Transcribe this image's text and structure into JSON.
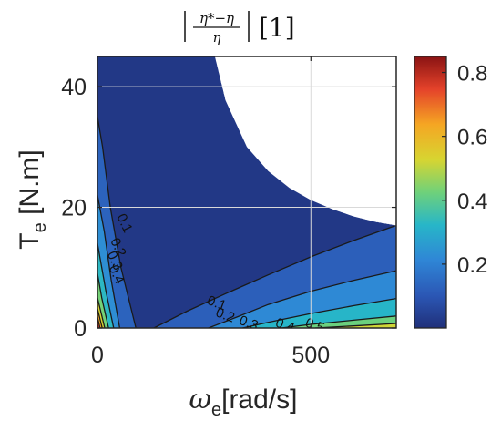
{
  "chart_data": {
    "type": "heatmap",
    "subtype": "filled-contour",
    "title": {
      "numerator": "η*−η",
      "denominator": "η",
      "suffix": "[1]"
    },
    "xlabel": {
      "symbol": "ω",
      "subscript": "e",
      "unit": "[rad/s]"
    },
    "ylabel": {
      "symbol": "T",
      "subscript": "e",
      "unit": "[N.m]"
    },
    "xlim": [
      0,
      700
    ],
    "ylim": [
      0,
      45
    ],
    "xticks": [
      0,
      500
    ],
    "yticks": [
      0,
      20,
      40
    ],
    "grid": true,
    "colormap": "parula-like",
    "colorbar": {
      "position": "right",
      "range": [
        0,
        0.85
      ],
      "ticks": [
        0.2,
        0.4,
        0.6,
        0.8
      ],
      "tick_labels": [
        "0.2",
        "0.4",
        "0.6",
        "0.8"
      ]
    },
    "contour_levels": [
      0.1,
      0.2,
      0.3,
      0.4,
      0.5
    ],
    "contour_labels": [
      {
        "text": "0.1",
        "x": 45,
        "y": 18.5
      },
      {
        "text": "0.2",
        "x": 30,
        "y": 14.5
      },
      {
        "text": "0.3",
        "x": 22,
        "y": 12.3
      },
      {
        "text": "0.4",
        "x": 26,
        "y": 10
      },
      {
        "text": "0.1",
        "x": 255,
        "y": 4
      },
      {
        "text": "0.2",
        "x": 275,
        "y": 2
      },
      {
        "text": "0.3",
        "x": 330,
        "y": 0.7
      },
      {
        "text": "0.4",
        "x": 415,
        "y": 0.3
      },
      {
        "text": "0.5",
        "x": 485,
        "y": 0.3
      }
    ],
    "valid_region_boundary": [
      [
        0,
        45
      ],
      [
        275,
        45
      ],
      [
        300,
        37.7
      ],
      [
        350,
        30
      ],
      [
        400,
        26
      ],
      [
        450,
        23.2
      ],
      [
        500,
        21.2
      ],
      [
        550,
        19.7
      ],
      [
        600,
        18.5
      ],
      [
        650,
        17.6
      ],
      [
        700,
        17
      ]
    ],
    "level_boundaries": [
      {
        "level": 0.1,
        "curve": [
          [
            132,
            0
          ],
          [
            210,
            2.8
          ],
          [
            300,
            5.7
          ],
          [
            400,
            8.8
          ],
          [
            500,
            11.8
          ],
          [
            600,
            14.5
          ],
          [
            700,
            17
          ]
        ]
      },
      {
        "level": 0.2,
        "curve": [
          [
            260,
            0
          ],
          [
            330,
            1.9
          ],
          [
            400,
            3.9
          ],
          [
            500,
            6.1
          ],
          [
            600,
            7.9
          ],
          [
            700,
            9.5
          ]
        ]
      },
      {
        "level": 0.3,
        "curve": [
          [
            340,
            0
          ],
          [
            400,
            0.95
          ],
          [
            500,
            2.4
          ],
          [
            600,
            3.7
          ],
          [
            700,
            4.9
          ]
        ]
      },
      {
        "level": 0.4,
        "curve": [
          [
            430,
            0
          ],
          [
            500,
            0.6
          ],
          [
            600,
            1.3
          ],
          [
            700,
            2.0
          ]
        ]
      },
      {
        "level": 0.5,
        "curve": [
          [
            510,
            0
          ],
          [
            600,
            0.35
          ],
          [
            700,
            0.75
          ]
        ]
      }
    ],
    "low_speed_boundaries": [
      {
        "level": 0.1,
        "curve": [
          [
            90,
            0
          ],
          [
            55,
            10
          ],
          [
            30,
            20
          ],
          [
            12,
            30
          ],
          [
            0,
            35
          ]
        ]
      },
      {
        "level": 0.2,
        "curve": [
          [
            52,
            0
          ],
          [
            32,
            8
          ],
          [
            16,
            16
          ],
          [
            0,
            22
          ]
        ]
      },
      {
        "level": 0.3,
        "curve": [
          [
            38,
            0
          ],
          [
            20,
            6
          ],
          [
            0,
            14
          ]
        ]
      },
      {
        "level": 0.4,
        "curve": [
          [
            26,
            0
          ],
          [
            10,
            5
          ],
          [
            0,
            9
          ]
        ]
      },
      {
        "level": 0.5,
        "curve": [
          [
            17,
            0
          ],
          [
            0,
            5
          ]
        ]
      },
      {
        "level": 0.6,
        "curve": [
          [
            11,
            0
          ],
          [
            0,
            3.2
          ]
        ]
      },
      {
        "level": 0.7,
        "curve": [
          [
            6,
            0
          ],
          [
            0,
            1.8
          ]
        ]
      }
    ],
    "corner_level": 0.8
  }
}
